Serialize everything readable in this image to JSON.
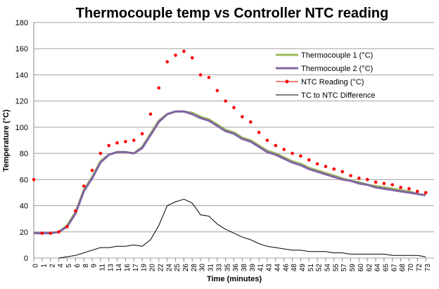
{
  "chart_data": {
    "type": "line",
    "title": "Thermocouple temp vs Controller NTC reading",
    "x_label": "Time (minutes)",
    "y_label": "Temperature (°C)",
    "categories": [
      "0",
      "1",
      "2",
      "4",
      "5",
      "6",
      "8",
      "9",
      "11",
      "13",
      "14",
      "16",
      "17",
      "19",
      "20",
      "22",
      "24",
      "25",
      "26",
      "28",
      "30",
      "31",
      "33",
      "35",
      "36",
      "38",
      "39",
      "41",
      "43",
      "44",
      "46",
      "48",
      "49",
      "51",
      "52",
      "54",
      "55",
      "57",
      "59",
      "60",
      "62",
      "64",
      "65",
      "67",
      "68",
      "70",
      "72",
      "73"
    ],
    "ylim": [
      0,
      180
    ],
    "yticks": [
      0,
      20,
      40,
      60,
      80,
      100,
      120,
      140,
      160,
      180
    ],
    "grid": true,
    "legend": "upper right",
    "series": [
      {
        "name": "Thermocouple 1 (°C)",
        "color": "#9bbb59",
        "style": "line",
        "values": [
          19,
          19,
          19,
          20,
          25,
          35,
          52,
          62,
          74,
          79,
          81,
          81,
          80,
          85,
          95,
          105,
          110,
          112,
          112,
          111,
          108,
          106,
          102,
          98,
          96,
          92,
          90,
          86,
          82,
          80,
          77,
          74,
          72,
          69,
          67,
          65,
          63,
          61,
          59,
          58,
          56,
          55,
          54,
          53,
          52,
          51,
          49,
          48
        ]
      },
      {
        "name": "Thermocouple 2 (°C)",
        "color": "#8064a2",
        "style": "line",
        "values": [
          19,
          19,
          19,
          20,
          24,
          34,
          51,
          61,
          73,
          79,
          81,
          81,
          80,
          84,
          94,
          104,
          110,
          112,
          112,
          110,
          107,
          105,
          101,
          97,
          95,
          91,
          89,
          85,
          81,
          79,
          76,
          73,
          71,
          68,
          66,
          64,
          62,
          60,
          59,
          57,
          56,
          54,
          53,
          52,
          51,
          50,
          49,
          48
        ]
      },
      {
        "name": "NTC Reading (°C)",
        "color": "#ff0000",
        "style": "dots",
        "values": [
          60,
          19,
          19,
          20,
          24,
          36,
          55,
          67,
          80,
          86,
          88,
          89,
          90,
          95,
          110,
          130,
          150,
          155,
          158,
          153,
          140,
          138,
          128,
          120,
          115,
          108,
          104,
          96,
          90,
          86,
          83,
          80,
          78,
          75,
          72,
          70,
          68,
          66,
          63,
          61,
          60,
          58,
          57,
          56,
          54,
          53,
          51,
          50
        ]
      },
      {
        "name": "TC to NTC Difference",
        "color": "#000000",
        "style": "line",
        "values": [
          null,
          null,
          null,
          0,
          1,
          2,
          4,
          6,
          8,
          8,
          9,
          9,
          10,
          9,
          14,
          25,
          40,
          43,
          45,
          42,
          33,
          32,
          26,
          22,
          19,
          16,
          14,
          11,
          9,
          8,
          7,
          6,
          6,
          5,
          5,
          5,
          4,
          4,
          3,
          3,
          3,
          3,
          3,
          2,
          2,
          2,
          2,
          1
        ]
      }
    ]
  }
}
